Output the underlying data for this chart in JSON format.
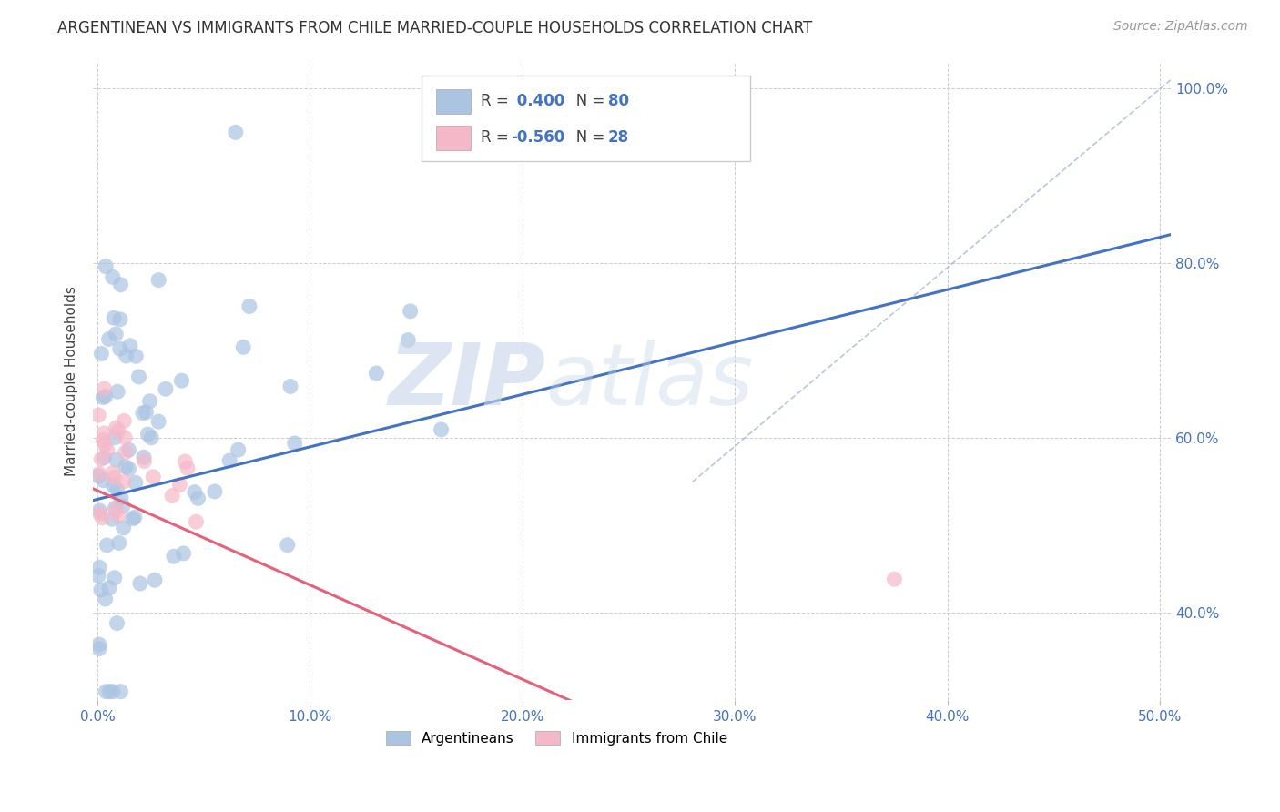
{
  "title": "ARGENTINEAN VS IMMIGRANTS FROM CHILE MARRIED-COUPLE HOUSEHOLDS CORRELATION CHART",
  "source": "Source: ZipAtlas.com",
  "ylabel": "Married-couple Households",
  "x_min": -0.002,
  "x_max": 0.505,
  "y_min": 0.3,
  "y_max": 1.03,
  "legend_label1": "Argentineans",
  "legend_label2": "Immigrants from Chile",
  "R1": 0.4,
  "N1": 80,
  "R2": -0.56,
  "N2": 28,
  "color_blue": "#aac4e2",
  "color_pink": "#f5b8c8",
  "line_blue": "#4472c4",
  "line_pink": "#e8607a",
  "line_diag_color": "#9ab0d0",
  "watermark_zip": "ZIP",
  "watermark_atlas": "atlas",
  "title_fontsize": 12,
  "source_fontsize": 10,
  "yticks": [
    0.4,
    0.6,
    0.8,
    1.0
  ],
  "xticks": [
    0.0,
    0.1,
    0.2,
    0.3,
    0.4,
    0.5
  ]
}
